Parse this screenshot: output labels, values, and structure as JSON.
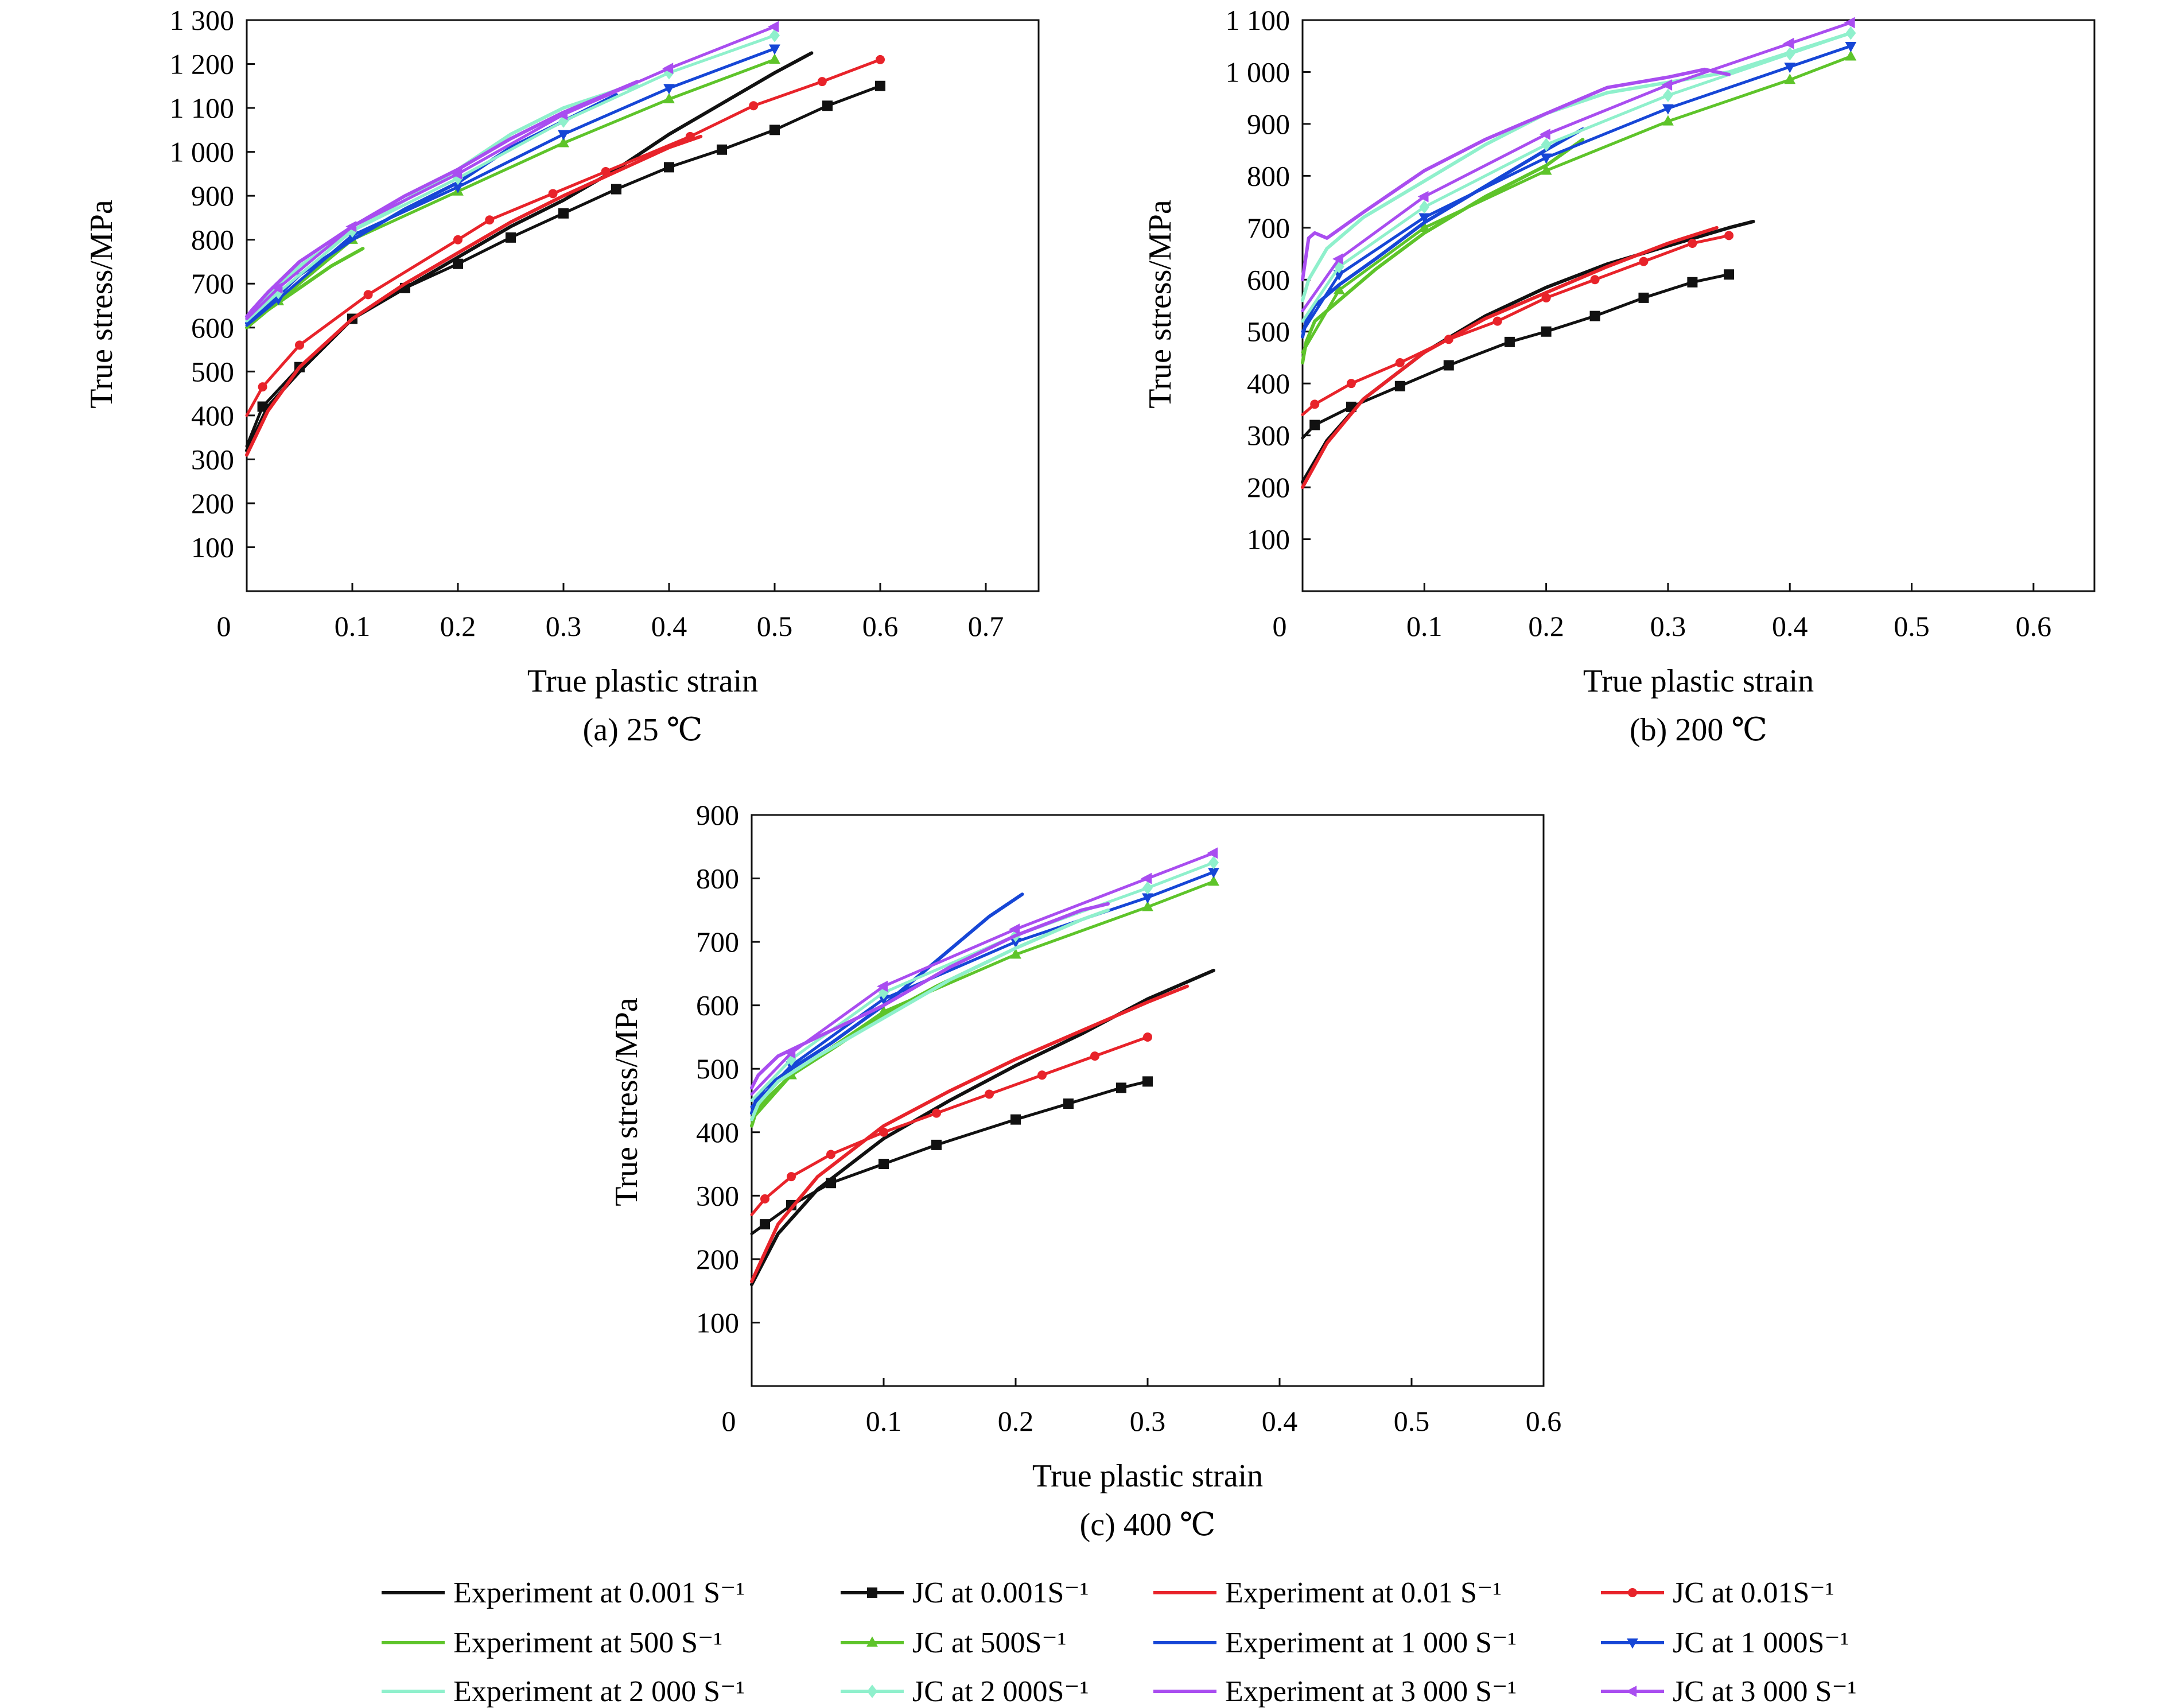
{
  "series_styles": [
    {
      "key": "exp0001",
      "label": "Experiment at 0.001 S⁻¹",
      "color": "#111111",
      "marker": "none"
    },
    {
      "key": "jc0001",
      "label": "JC at 0.001S⁻¹",
      "color": "#111111",
      "marker": "square"
    },
    {
      "key": "exp001",
      "label": "Experiment at 0.01 S⁻¹",
      "color": "#e8232a",
      "marker": "none"
    },
    {
      "key": "jc001",
      "label": "JC at 0.01S⁻¹",
      "color": "#e8232a",
      "marker": "circle"
    },
    {
      "key": "exp500",
      "label": "Experiment at 500 S⁻¹",
      "color": "#5ec42a",
      "marker": "none"
    },
    {
      "key": "jc500",
      "label": "JC at 500S⁻¹",
      "color": "#5ec42a",
      "marker": "triangle"
    },
    {
      "key": "exp1000",
      "label": "Experiment at 1 000 S⁻¹",
      "color": "#1646d6",
      "marker": "none"
    },
    {
      "key": "jc1000",
      "label": "JC at 1 000S⁻¹",
      "color": "#1646d6",
      "marker": "tridown"
    },
    {
      "key": "exp2000",
      "label": "Experiment at 2 000 S⁻¹",
      "color": "#8ff0cc",
      "marker": "none"
    },
    {
      "key": "jc2000",
      "label": "JC at 2 000S⁻¹",
      "color": "#8ff0cc",
      "marker": "diamond"
    },
    {
      "key": "exp3000",
      "label": "Experiment at 3 000 S⁻¹",
      "color": "#a94df0",
      "marker": "none"
    },
    {
      "key": "jc3000",
      "label": "JC at 3 000 S⁻¹",
      "color": "#a94df0",
      "marker": "trileft"
    }
  ],
  "chart_data": [
    {
      "type": "line",
      "caption": "(a) 25 ℃",
      "xlabel": "True plastic strain",
      "ylabel": "True stress/MPa",
      "xlim": [
        0,
        0.75
      ],
      "ylim": [
        0,
        1300
      ],
      "xticks": [
        0.1,
        0.2,
        0.3,
        0.4,
        0.5,
        0.6,
        0.7
      ],
      "xtick_labels": [
        "0.1",
        "0.2",
        "0.3",
        "0.4",
        "0.5",
        "0.6",
        "0.7"
      ],
      "yticks": [
        100,
        200,
        300,
        400,
        500,
        600,
        700,
        800,
        900,
        1000,
        1100,
        1200,
        1300
      ],
      "ytick_labels": [
        "100",
        "200",
        "300",
        "400",
        "500",
        "600",
        "700",
        "800",
        "900",
        "1 000",
        "1 100",
        "1 200",
        "1 300"
      ],
      "origin_label": "0",
      "series": [
        {
          "key": "exp0001",
          "x": [
            0,
            0.02,
            0.05,
            0.1,
            0.15,
            0.2,
            0.25,
            0.3,
            0.35,
            0.4,
            0.45,
            0.5,
            0.535
          ],
          "y": [
            320,
            420,
            500,
            620,
            690,
            760,
            830,
            890,
            960,
            1040,
            1110,
            1180,
            1225
          ]
        },
        {
          "key": "jc0001",
          "x": [
            0,
            0.015,
            0.05,
            0.1,
            0.15,
            0.2,
            0.25,
            0.3,
            0.35,
            0.4,
            0.45,
            0.5,
            0.55,
            0.6
          ],
          "y": [
            330,
            420,
            510,
            620,
            690,
            745,
            805,
            860,
            915,
            965,
            1005,
            1050,
            1105,
            1150
          ]
        },
        {
          "key": "exp001",
          "x": [
            0,
            0.02,
            0.05,
            0.1,
            0.15,
            0.2,
            0.25,
            0.3,
            0.35,
            0.4,
            0.43
          ],
          "y": [
            310,
            410,
            510,
            620,
            700,
            770,
            840,
            900,
            955,
            1010,
            1035
          ]
        },
        {
          "key": "jc001",
          "x": [
            0,
            0.015,
            0.05,
            0.115,
            0.2,
            0.23,
            0.29,
            0.34,
            0.42,
            0.48,
            0.545,
            0.6
          ],
          "y": [
            400,
            465,
            560,
            675,
            800,
            845,
            905,
            955,
            1035,
            1105,
            1160,
            1210
          ]
        },
        {
          "key": "exp500",
          "x": [
            0,
            0.005,
            0.02,
            0.05,
            0.08,
            0.11
          ],
          "y": [
            600,
            610,
            640,
            690,
            740,
            780
          ]
        },
        {
          "key": "jc500",
          "x": [
            0,
            0.03,
            0.1,
            0.2,
            0.3,
            0.4,
            0.5
          ],
          "y": [
            600,
            660,
            800,
            910,
            1020,
            1120,
            1210
          ]
        },
        {
          "key": "exp1000",
          "x": [
            0,
            0.005,
            0.02,
            0.05,
            0.1,
            0.15,
            0.2,
            0.25,
            0.3,
            0.35
          ],
          "y": [
            610,
            620,
            650,
            720,
            800,
            870,
            930,
            1010,
            1070,
            1130
          ]
        },
        {
          "key": "jc1000",
          "x": [
            0,
            0.03,
            0.1,
            0.2,
            0.3,
            0.4,
            0.5
          ],
          "y": [
            605,
            665,
            810,
            920,
            1040,
            1145,
            1235
          ]
        },
        {
          "key": "exp2000",
          "x": [
            0,
            0.005,
            0.02,
            0.05,
            0.1,
            0.15,
            0.2,
            0.25,
            0.3,
            0.35,
            0.37
          ],
          "y": [
            620,
            635,
            670,
            740,
            820,
            890,
            960,
            1040,
            1100,
            1140,
            1150
          ]
        },
        {
          "key": "jc2000",
          "x": [
            0,
            0.03,
            0.1,
            0.2,
            0.3,
            0.4,
            0.5
          ],
          "y": [
            615,
            680,
            820,
            940,
            1070,
            1180,
            1265
          ]
        },
        {
          "key": "exp3000",
          "x": [
            0,
            0.005,
            0.02,
            0.05,
            0.1,
            0.15,
            0.2,
            0.25,
            0.3,
            0.35,
            0.37
          ],
          "y": [
            625,
            640,
            680,
            750,
            830,
            900,
            960,
            1030,
            1090,
            1140,
            1160
          ]
        },
        {
          "key": "jc3000",
          "x": [
            0,
            0.03,
            0.1,
            0.2,
            0.3,
            0.4,
            0.5
          ],
          "y": [
            620,
            690,
            830,
            950,
            1085,
            1190,
            1285
          ]
        }
      ]
    },
    {
      "type": "line",
      "caption": "(b) 200 ℃",
      "xlabel": "True plastic strain",
      "ylabel": "True stress/MPa",
      "xlim": [
        0,
        0.65
      ],
      "ylim": [
        0,
        1100
      ],
      "xticks": [
        0.1,
        0.2,
        0.3,
        0.4,
        0.5,
        0.6
      ],
      "xtick_labels": [
        "0.1",
        "0.2",
        "0.3",
        "0.4",
        "0.5",
        "0.6"
      ],
      "yticks": [
        100,
        200,
        300,
        400,
        500,
        600,
        700,
        800,
        900,
        1000,
        1100
      ],
      "ytick_labels": [
        "100",
        "200",
        "300",
        "400",
        "500",
        "600",
        "700",
        "800",
        "900",
        "1 000",
        "1 100"
      ],
      "origin_label": "0",
      "series": [
        {
          "key": "exp0001",
          "x": [
            0,
            0.02,
            0.05,
            0.1,
            0.15,
            0.2,
            0.25,
            0.3,
            0.35,
            0.37
          ],
          "y": [
            210,
            290,
            370,
            460,
            530,
            585,
            630,
            665,
            700,
            712
          ]
        },
        {
          "key": "jc0001",
          "x": [
            0,
            0.01,
            0.04,
            0.08,
            0.12,
            0.17,
            0.2,
            0.24,
            0.28,
            0.32,
            0.35
          ],
          "y": [
            295,
            320,
            355,
            395,
            435,
            480,
            500,
            530,
            565,
            595,
            610
          ]
        },
        {
          "key": "exp001",
          "x": [
            0,
            0.02,
            0.05,
            0.1,
            0.15,
            0.2,
            0.25,
            0.3,
            0.34
          ],
          "y": [
            200,
            285,
            370,
            460,
            525,
            575,
            625,
            670,
            700
          ]
        },
        {
          "key": "jc001",
          "x": [
            0,
            0.01,
            0.04,
            0.08,
            0.12,
            0.16,
            0.2,
            0.24,
            0.28,
            0.32,
            0.35
          ],
          "y": [
            340,
            360,
            400,
            440,
            485,
            520,
            565,
            600,
            635,
            670,
            685
          ]
        },
        {
          "key": "exp500",
          "x": [
            0,
            0.003,
            0.01,
            0.03,
            0.06,
            0.1,
            0.15,
            0.2,
            0.23
          ],
          "y": [
            440,
            480,
            520,
            560,
            620,
            690,
            760,
            820,
            870
          ]
        },
        {
          "key": "jc500",
          "x": [
            0,
            0.03,
            0.1,
            0.2,
            0.3,
            0.4,
            0.45
          ],
          "y": [
            460,
            580,
            700,
            810,
            905,
            985,
            1030
          ]
        },
        {
          "key": "exp1000",
          "x": [
            0,
            0.003,
            0.01,
            0.03,
            0.06,
            0.1,
            0.15,
            0.2,
            0.23
          ],
          "y": [
            490,
            520,
            550,
            590,
            640,
            710,
            780,
            850,
            890
          ]
        },
        {
          "key": "jc1000",
          "x": [
            0,
            0.03,
            0.1,
            0.2,
            0.3,
            0.4,
            0.45
          ],
          "y": [
            500,
            610,
            720,
            835,
            930,
            1010,
            1050
          ]
        },
        {
          "key": "exp2000",
          "x": [
            0,
            0.005,
            0.02,
            0.05,
            0.1,
            0.15,
            0.2,
            0.25,
            0.3,
            0.35,
            0.45
          ],
          "y": [
            560,
            600,
            660,
            720,
            790,
            860,
            920,
            960,
            980,
            1000,
            1075
          ]
        },
        {
          "key": "jc2000",
          "x": [
            0,
            0.03,
            0.1,
            0.2,
            0.3,
            0.4,
            0.45
          ],
          "y": [
            520,
            625,
            740,
            860,
            955,
            1035,
            1075
          ]
        },
        {
          "key": "exp3000",
          "x": [
            0,
            0.005,
            0.01,
            0.02,
            0.05,
            0.1,
            0.15,
            0.2,
            0.25,
            0.3,
            0.33,
            0.35
          ],
          "y": [
            600,
            680,
            690,
            680,
            730,
            810,
            870,
            920,
            970,
            990,
            1005,
            995
          ]
        },
        {
          "key": "jc3000",
          "x": [
            0,
            0.03,
            0.1,
            0.2,
            0.3,
            0.4,
            0.45
          ],
          "y": [
            540,
            640,
            760,
            880,
            975,
            1055,
            1095
          ]
        }
      ]
    },
    {
      "type": "line",
      "caption": "(c) 400 ℃",
      "xlabel": "True plastic strain",
      "ylabel": "True stress/MPa",
      "xlim": [
        0,
        0.6
      ],
      "ylim": [
        0,
        900
      ],
      "xticks": [
        0.1,
        0.2,
        0.3,
        0.4,
        0.5,
        0.6
      ],
      "xtick_labels": [
        "0.1",
        "0.2",
        "0.3",
        "0.4",
        "0.5",
        "0.6"
      ],
      "yticks": [
        100,
        200,
        300,
        400,
        500,
        600,
        700,
        800,
        900
      ],
      "ytick_labels": [
        "100",
        "200",
        "300",
        "400",
        "500",
        "600",
        "700",
        "800",
        "900"
      ],
      "origin_label": "0",
      "series": [
        {
          "key": "exp0001",
          "x": [
            0,
            0.02,
            0.05,
            0.1,
            0.15,
            0.2,
            0.25,
            0.3,
            0.35
          ],
          "y": [
            160,
            240,
            310,
            390,
            450,
            505,
            555,
            610,
            655
          ]
        },
        {
          "key": "jc0001",
          "x": [
            0,
            0.01,
            0.03,
            0.06,
            0.1,
            0.14,
            0.2,
            0.24,
            0.28,
            0.3
          ],
          "y": [
            240,
            255,
            285,
            320,
            350,
            380,
            420,
            445,
            470,
            480
          ]
        },
        {
          "key": "exp001",
          "x": [
            0,
            0.02,
            0.05,
            0.1,
            0.15,
            0.2,
            0.25,
            0.3,
            0.33
          ],
          "y": [
            165,
            255,
            330,
            410,
            465,
            515,
            560,
            605,
            630
          ]
        },
        {
          "key": "jc001",
          "x": [
            0,
            0.01,
            0.03,
            0.06,
            0.1,
            0.14,
            0.18,
            0.22,
            0.26,
            0.3
          ],
          "y": [
            270,
            295,
            330,
            365,
            400,
            430,
            460,
            490,
            520,
            550
          ]
        },
        {
          "key": "exp500",
          "x": [
            0,
            0.003,
            0.01,
            0.03,
            0.06,
            0.1,
            0.14,
            0.18
          ],
          "y": [
            410,
            430,
            450,
            490,
            530,
            585,
            630,
            670
          ]
        },
        {
          "key": "jc500",
          "x": [
            0,
            0.03,
            0.1,
            0.2,
            0.3,
            0.35
          ],
          "y": [
            420,
            490,
            590,
            680,
            755,
            795
          ]
        },
        {
          "key": "exp1000",
          "x": [
            0,
            0.003,
            0.01,
            0.03,
            0.06,
            0.1,
            0.14,
            0.18,
            0.205
          ],
          "y": [
            430,
            450,
            470,
            500,
            540,
            600,
            670,
            740,
            775
          ]
        },
        {
          "key": "jc1000",
          "x": [
            0,
            0.03,
            0.1,
            0.2,
            0.3,
            0.35
          ],
          "y": [
            440,
            505,
            610,
            700,
            770,
            810
          ]
        },
        {
          "key": "exp2000",
          "x": [
            0,
            0.005,
            0.02,
            0.05,
            0.1,
            0.15,
            0.2,
            0.25,
            0.27
          ],
          "y": [
            420,
            445,
            480,
            520,
            580,
            640,
            690,
            735,
            750
          ]
        },
        {
          "key": "jc2000",
          "x": [
            0,
            0.03,
            0.1,
            0.2,
            0.3,
            0.35
          ],
          "y": [
            450,
            515,
            620,
            710,
            785,
            825
          ]
        },
        {
          "key": "exp3000",
          "x": [
            0,
            0.005,
            0.02,
            0.03,
            0.05,
            0.1,
            0.15,
            0.2,
            0.25,
            0.27
          ],
          "y": [
            470,
            490,
            520,
            530,
            550,
            600,
            660,
            710,
            750,
            760
          ]
        },
        {
          "key": "jc3000",
          "x": [
            0,
            0.03,
            0.1,
            0.2,
            0.3,
            0.35
          ],
          "y": [
            460,
            525,
            630,
            720,
            800,
            840
          ]
        }
      ]
    }
  ]
}
